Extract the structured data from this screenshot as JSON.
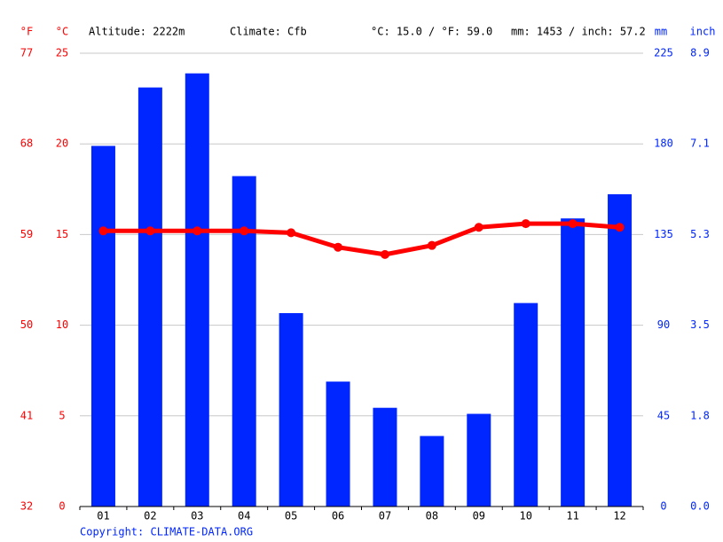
{
  "chart_data": {
    "type": "combo",
    "categories": [
      "01",
      "02",
      "03",
      "04",
      "05",
      "06",
      "07",
      "08",
      "09",
      "10",
      "11",
      "12"
    ],
    "series": [
      {
        "type": "bar",
        "axis": "y2",
        "color": "#0026ff",
        "values": [
          179,
          208,
          215,
          164,
          96,
          62,
          49,
          35,
          46,
          101,
          143,
          155
        ]
      },
      {
        "type": "line",
        "axis": "y",
        "color": "#ff0000",
        "values": [
          15.2,
          15.2,
          15.2,
          15.2,
          15.1,
          14.3,
          13.9,
          14.4,
          15.4,
          15.6,
          15.6,
          15.4
        ]
      }
    ],
    "ylabel": "°C",
    "ylim": [
      0,
      25
    ],
    "yticks": [
      0,
      5,
      10,
      15,
      20,
      25
    ],
    "ylabel_f": "°F",
    "ylim_f": [
      32,
      77
    ],
    "yticks_f": [
      32,
      41,
      50,
      59,
      68,
      77
    ],
    "y2label": "mm",
    "y2lim": [
      0,
      225
    ],
    "y2ticks": [
      0,
      45,
      90,
      135,
      180,
      225
    ],
    "y2label_inch": "inch",
    "y2lim_inch": [
      0,
      8.858
    ],
    "y2ticks_inch": [
      {
        "value": 0,
        "label": "0.0"
      },
      {
        "value": 1.772,
        "label": "1.8"
      },
      {
        "value": 3.543,
        "label": "3.5"
      },
      {
        "value": 5.315,
        "label": "5.3"
      },
      {
        "value": 7.087,
        "label": "7.1"
      },
      {
        "value": 8.858,
        "label": "8.9"
      }
    ],
    "annotations": [
      "Altitude: 2222m",
      "Climate: Cfb",
      "°C: 15.0 / °F: 59.0",
      "mm: 1453 / inch: 57.2"
    ],
    "copyright": "Copyright: CLIMATE-DATA.ORG",
    "grid": true
  }
}
